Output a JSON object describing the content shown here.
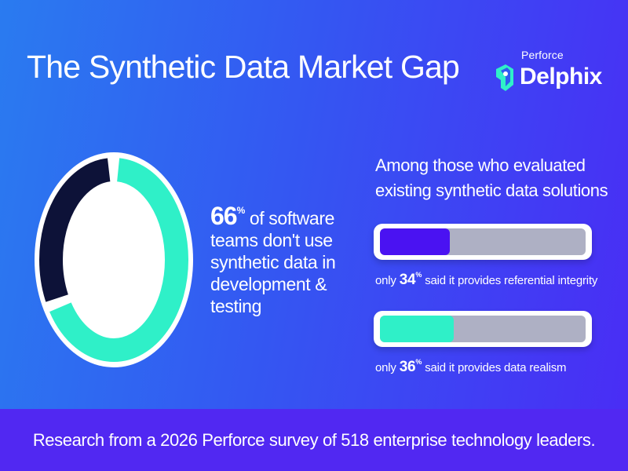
{
  "title": "The Synthetic Data Market Gap",
  "logo": {
    "small_text": "Perforce",
    "name": "Delphix"
  },
  "donut": {
    "value_fraction": 0.66,
    "colors": {
      "major": "#2ff0c8",
      "minor": "#0d1238",
      "ring": "#ffffff"
    }
  },
  "main_stat": {
    "number": "66",
    "percent": "%",
    "text": "of software teams don't use synthetic data in development & testing"
  },
  "subheading": "Among those who evaluated existing synthetic data solutions",
  "bars": [
    {
      "value_fraction": 0.34,
      "fill_color": "#4a12f2",
      "prefix": "only",
      "number": "34",
      "percent": "%",
      "text": "said it provides referential integrity"
    },
    {
      "value_fraction": 0.36,
      "fill_color": "#2ff0c8",
      "prefix": "only",
      "number": "36",
      "percent": "%",
      "text": "said it provides data realism"
    }
  ],
  "footer": "Research from a 2026 Perforce survey of 518 enterprise technology leaders."
}
